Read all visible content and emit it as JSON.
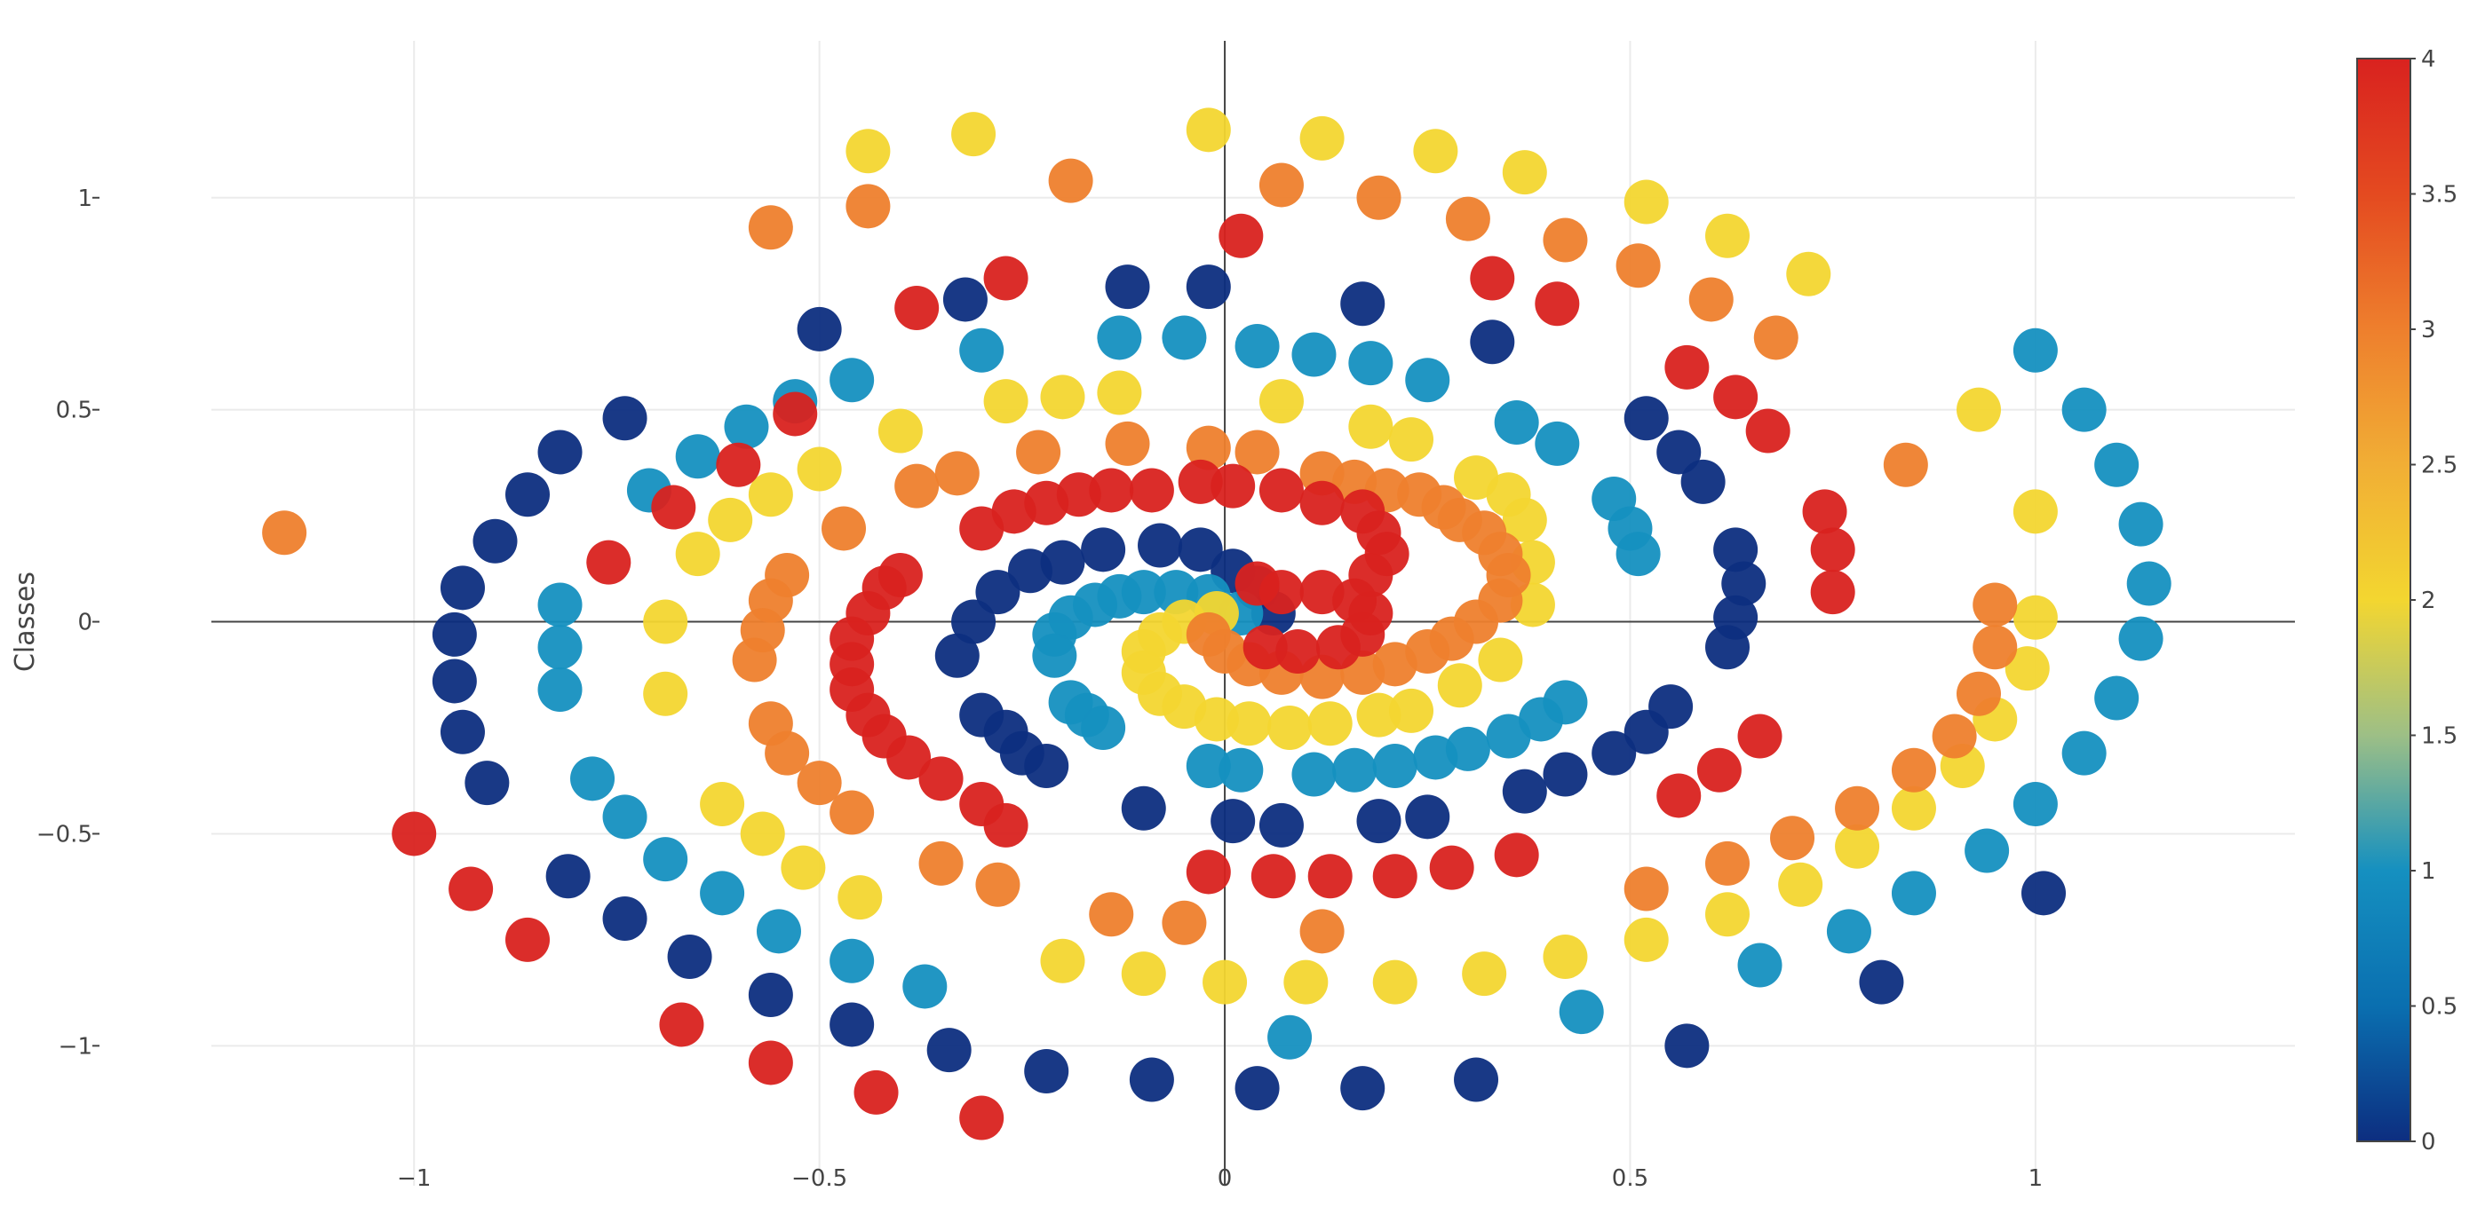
{
  "chart_data": {
    "type": "scatter",
    "title": "",
    "xlabel": "",
    "ylabel": "Classes",
    "xlim": [
      -1.25,
      1.32
    ],
    "ylim": [
      -1.33,
      1.37
    ],
    "x_ticks": [
      -1,
      -0.5,
      0,
      0.5,
      1
    ],
    "x_tick_labels": [
      "−1",
      "−0.5",
      "0",
      "0.5",
      "1"
    ],
    "y_ticks": [
      -1,
      -0.5,
      0,
      0.5,
      1
    ],
    "y_tick_labels": [
      "−1",
      "−0.5",
      "0",
      "0.5",
      "1"
    ],
    "grid": true,
    "zero_lines": true,
    "colorbar": {
      "min": 0,
      "max": 4,
      "ticks": [
        0,
        0.5,
        1,
        1.5,
        2,
        2.5,
        3,
        3.5,
        4
      ],
      "tick_labels": [
        "0",
        "0.5",
        "1",
        "1.5",
        "2",
        "2.5",
        "3",
        "3.5",
        "4"
      ],
      "colorscale": [
        "#0d2e80",
        "#0a6fb0",
        "#1590c0",
        "#9dbf86",
        "#f3d630",
        "#f1ae35",
        "#ee7f2d",
        "#e44a20",
        "#d9221f"
      ]
    },
    "classes": {
      "0": [
        [
          0.06,
          0.02
        ],
        [
          0.04,
          0.08
        ],
        [
          0.01,
          0.12
        ],
        [
          -0.03,
          0.17
        ],
        [
          -0.08,
          0.18
        ],
        [
          -0.15,
          0.17
        ],
        [
          -0.2,
          0.14
        ],
        [
          -0.24,
          0.12
        ],
        [
          -0.28,
          0.07
        ],
        [
          -0.31,
          0.0
        ],
        [
          -0.33,
          -0.08
        ],
        [
          -0.3,
          -0.22
        ],
        [
          -0.27,
          -0.26
        ],
        [
          -0.25,
          -0.31
        ],
        [
          -0.22,
          -0.34
        ],
        [
          -0.1,
          -0.44
        ],
        [
          0.01,
          -0.47
        ],
        [
          0.07,
          -0.48
        ],
        [
          0.19,
          -0.47
        ],
        [
          0.25,
          -0.46
        ],
        [
          0.37,
          -0.4
        ],
        [
          0.42,
          -0.36
        ],
        [
          0.48,
          -0.31
        ],
        [
          0.52,
          -0.26
        ],
        [
          0.55,
          -0.2
        ],
        [
          0.62,
          -0.06
        ],
        [
          0.63,
          0.01
        ],
        [
          0.64,
          0.09
        ],
        [
          0.63,
          0.17
        ],
        [
          0.59,
          0.33
        ],
        [
          0.56,
          0.4
        ],
        [
          0.52,
          0.48
        ],
        [
          0.33,
          0.66
        ],
        [
          0.17,
          0.75
        ],
        [
          -0.02,
          0.79
        ],
        [
          -0.12,
          0.79
        ],
        [
          -0.32,
          0.76
        ],
        [
          -0.5,
          0.69
        ],
        [
          -0.74,
          0.48
        ],
        [
          -0.82,
          0.4
        ],
        [
          -0.86,
          0.3
        ],
        [
          -0.9,
          0.19
        ],
        [
          -0.94,
          0.08
        ],
        [
          -0.95,
          -0.03
        ],
        [
          -0.95,
          -0.14
        ],
        [
          -0.94,
          -0.26
        ],
        [
          -0.91,
          -0.38
        ],
        [
          -0.81,
          -0.6
        ],
        [
          -0.74,
          -0.7
        ],
        [
          -0.66,
          -0.79
        ],
        [
          -0.56,
          -0.88
        ],
        [
          -0.46,
          -0.95
        ],
        [
          -0.34,
          -1.01
        ],
        [
          -0.22,
          -1.06
        ],
        [
          -0.09,
          -1.08
        ],
        [
          0.04,
          -1.1
        ],
        [
          0.17,
          -1.1
        ],
        [
          0.31,
          -1.08
        ],
        [
          0.57,
          -1.0
        ],
        [
          0.81,
          -0.85
        ],
        [
          1.01,
          -0.64
        ]
      ],
      "1": [
        [
          0.02,
          0.02
        ],
        [
          -0.02,
          0.06
        ],
        [
          -0.06,
          0.07
        ],
        [
          -0.1,
          0.07
        ],
        [
          -0.13,
          0.06
        ],
        [
          -0.16,
          0.04
        ],
        [
          -0.19,
          0.01
        ],
        [
          -0.21,
          -0.03
        ],
        [
          -0.21,
          -0.08
        ],
        [
          -0.19,
          -0.19
        ],
        [
          -0.17,
          -0.22
        ],
        [
          -0.15,
          -0.25
        ],
        [
          -0.02,
          -0.34
        ],
        [
          0.02,
          -0.35
        ],
        [
          0.11,
          -0.36
        ],
        [
          0.16,
          -0.35
        ],
        [
          0.21,
          -0.34
        ],
        [
          0.26,
          -0.32
        ],
        [
          0.3,
          -0.3
        ],
        [
          0.35,
          -0.27
        ],
        [
          0.39,
          -0.23
        ],
        [
          0.42,
          -0.19
        ],
        [
          0.51,
          0.16
        ],
        [
          0.5,
          0.22
        ],
        [
          0.48,
          0.29
        ],
        [
          0.41,
          0.42
        ],
        [
          0.36,
          0.47
        ],
        [
          0.25,
          0.57
        ],
        [
          0.18,
          0.61
        ],
        [
          0.11,
          0.63
        ],
        [
          0.04,
          0.65
        ],
        [
          -0.05,
          0.67
        ],
        [
          -0.13,
          0.67
        ],
        [
          -0.3,
          0.64
        ],
        [
          -0.46,
          0.57
        ],
        [
          -0.53,
          0.52
        ],
        [
          -0.59,
          0.46
        ],
        [
          -0.65,
          0.39
        ],
        [
          -0.71,
          0.31
        ],
        [
          -0.82,
          0.04
        ],
        [
          -0.82,
          -0.06
        ],
        [
          -0.82,
          -0.16
        ],
        [
          -0.78,
          -0.37
        ],
        [
          -0.74,
          -0.46
        ],
        [
          -0.69,
          -0.56
        ],
        [
          -0.62,
          -0.64
        ],
        [
          -0.55,
          -0.73
        ],
        [
          -0.46,
          -0.8
        ],
        [
          -0.37,
          -0.86
        ],
        [
          0.08,
          -0.98
        ],
        [
          0.44,
          -0.92
        ],
        [
          0.66,
          -0.81
        ],
        [
          0.77,
          -0.73
        ],
        [
          0.85,
          -0.64
        ],
        [
          0.94,
          -0.54
        ],
        [
          1.0,
          -0.43
        ],
        [
          1.06,
          -0.31
        ],
        [
          1.1,
          -0.18
        ],
        [
          1.13,
          -0.04
        ],
        [
          1.14,
          0.09
        ],
        [
          1.13,
          0.23
        ],
        [
          1.1,
          0.37
        ],
        [
          1.06,
          0.5
        ],
        [
          1.0,
          0.64
        ]
      ],
      "2": [
        [
          -0.01,
          0.02
        ],
        [
          -0.05,
          0.0
        ],
        [
          -0.08,
          -0.03
        ],
        [
          -0.1,
          -0.07
        ],
        [
          -0.1,
          -0.12
        ],
        [
          -0.08,
          -0.17
        ],
        [
          -0.05,
          -0.2
        ],
        [
          -0.01,
          -0.23
        ],
        [
          0.03,
          -0.24
        ],
        [
          0.08,
          -0.25
        ],
        [
          0.13,
          -0.24
        ],
        [
          0.19,
          -0.22
        ],
        [
          0.23,
          -0.21
        ],
        [
          0.29,
          -0.15
        ],
        [
          0.34,
          -0.09
        ],
        [
          0.38,
          0.04
        ],
        [
          0.38,
          0.14
        ],
        [
          0.37,
          0.24
        ],
        [
          0.35,
          0.3
        ],
        [
          0.31,
          0.34
        ],
        [
          0.23,
          0.43
        ],
        [
          0.18,
          0.46
        ],
        [
          0.07,
          0.52
        ],
        [
          -0.13,
          0.54
        ],
        [
          -0.2,
          0.53
        ],
        [
          -0.27,
          0.52
        ],
        [
          -0.4,
          0.45
        ],
        [
          -0.5,
          0.36
        ],
        [
          -0.56,
          0.3
        ],
        [
          -0.61,
          0.24
        ],
        [
          -0.65,
          0.16
        ],
        [
          -0.69,
          0.0
        ],
        [
          -0.69,
          -0.17
        ],
        [
          -0.62,
          -0.43
        ],
        [
          -0.57,
          -0.5
        ],
        [
          -0.52,
          -0.58
        ],
        [
          -0.45,
          -0.65
        ],
        [
          -0.2,
          -0.8
        ],
        [
          -0.1,
          -0.83
        ],
        [
          0.0,
          -0.85
        ],
        [
          0.1,
          -0.85
        ],
        [
          0.21,
          -0.85
        ],
        [
          0.32,
          -0.83
        ],
        [
          0.42,
          -0.79
        ],
        [
          0.52,
          -0.75
        ],
        [
          0.62,
          -0.69
        ],
        [
          0.71,
          -0.62
        ],
        [
          0.78,
          -0.53
        ],
        [
          0.85,
          -0.44
        ],
        [
          0.91,
          -0.34
        ],
        [
          0.95,
          -0.23
        ],
        [
          0.99,
          -0.11
        ],
        [
          1.0,
          0.01
        ],
        [
          1.0,
          0.26
        ],
        [
          0.93,
          0.5
        ],
        [
          0.72,
          0.82
        ],
        [
          0.62,
          0.91
        ],
        [
          0.52,
          0.99
        ],
        [
          0.37,
          1.06
        ],
        [
          0.26,
          1.11
        ],
        [
          0.12,
          1.14
        ],
        [
          -0.02,
          1.16
        ],
        [
          -0.31,
          1.15
        ],
        [
          -0.44,
          1.11
        ]
      ],
      "3": [
        [
          -0.02,
          -0.03
        ],
        [
          0.0,
          -0.07
        ],
        [
          0.03,
          -0.1
        ],
        [
          0.07,
          -0.12
        ],
        [
          0.12,
          -0.13
        ],
        [
          0.17,
          -0.12
        ],
        [
          0.21,
          -0.1
        ],
        [
          0.25,
          -0.07
        ],
        [
          0.28,
          -0.04
        ],
        [
          0.31,
          0.0
        ],
        [
          0.34,
          0.05
        ],
        [
          0.35,
          0.11
        ],
        [
          0.34,
          0.16
        ],
        [
          0.32,
          0.21
        ],
        [
          0.29,
          0.24
        ],
        [
          0.27,
          0.27
        ],
        [
          0.24,
          0.3
        ],
        [
          0.2,
          0.31
        ],
        [
          0.16,
          0.33
        ],
        [
          0.12,
          0.35
        ],
        [
          0.04,
          0.4
        ],
        [
          -0.02,
          0.41
        ],
        [
          -0.12,
          0.42
        ],
        [
          -0.23,
          0.4
        ],
        [
          -0.33,
          0.35
        ],
        [
          -0.38,
          0.32
        ],
        [
          -0.47,
          0.22
        ],
        [
          -0.54,
          0.11
        ],
        [
          -0.56,
          0.05
        ],
        [
          -0.57,
          -0.02
        ],
        [
          -0.58,
          -0.09
        ],
        [
          -0.56,
          -0.24
        ],
        [
          -0.54,
          -0.31
        ],
        [
          -0.5,
          -0.38
        ],
        [
          -0.46,
          -0.45
        ],
        [
          -0.35,
          -0.57
        ],
        [
          -0.28,
          -0.62
        ],
        [
          -0.14,
          -0.69
        ],
        [
          -0.05,
          -0.71
        ],
        [
          0.12,
          -0.73
        ],
        [
          0.52,
          -0.63
        ],
        [
          0.62,
          -0.57
        ],
        [
          0.7,
          -0.51
        ],
        [
          0.78,
          -0.44
        ],
        [
          0.85,
          -0.35
        ],
        [
          0.9,
          -0.27
        ],
        [
          0.93,
          -0.17
        ],
        [
          0.95,
          -0.06
        ],
        [
          0.95,
          0.04
        ],
        [
          0.84,
          0.37
        ],
        [
          0.68,
          0.67
        ],
        [
          0.6,
          0.76
        ],
        [
          0.51,
          0.84
        ],
        [
          0.42,
          0.9
        ],
        [
          0.3,
          0.95
        ],
        [
          0.19,
          1.0
        ],
        [
          0.07,
          1.03
        ],
        [
          -0.19,
          1.04
        ],
        [
          -0.44,
          0.98
        ],
        [
          -0.56,
          0.93
        ],
        [
          -1.16,
          0.21
        ]
      ],
      "4": [
        [
          0.04,
          0.09
        ],
        [
          0.07,
          0.07
        ],
        [
          0.12,
          0.07
        ],
        [
          0.16,
          0.05
        ],
        [
          0.18,
          0.02
        ],
        [
          0.17,
          -0.03
        ],
        [
          0.14,
          -0.06
        ],
        [
          0.09,
          -0.07
        ],
        [
          0.05,
          -0.06
        ],
        [
          0.18,
          0.11
        ],
        [
          0.2,
          0.16
        ],
        [
          0.19,
          0.21
        ],
        [
          0.17,
          0.26
        ],
        [
          0.12,
          0.28
        ],
        [
          0.07,
          0.31
        ],
        [
          0.01,
          0.32
        ],
        [
          -0.03,
          0.33
        ],
        [
          -0.09,
          0.31
        ],
        [
          -0.14,
          0.31
        ],
        [
          -0.18,
          0.3
        ],
        [
          -0.22,
          0.28
        ],
        [
          -0.26,
          0.26
        ],
        [
          -0.3,
          0.22
        ],
        [
          -0.4,
          0.11
        ],
        [
          -0.42,
          0.08
        ],
        [
          -0.44,
          0.02
        ],
        [
          -0.46,
          -0.04
        ],
        [
          -0.46,
          -0.1
        ],
        [
          -0.46,
          -0.16
        ],
        [
          -0.44,
          -0.22
        ],
        [
          -0.42,
          -0.27
        ],
        [
          -0.39,
          -0.32
        ],
        [
          -0.35,
          -0.37
        ],
        [
          -0.3,
          -0.43
        ],
        [
          -0.27,
          -0.48
        ],
        [
          -0.02,
          -0.59
        ],
        [
          0.06,
          -0.6
        ],
        [
          0.13,
          -0.6
        ],
        [
          0.21,
          -0.6
        ],
        [
          0.28,
          -0.58
        ],
        [
          0.36,
          -0.55
        ],
        [
          0.56,
          -0.41
        ],
        [
          0.61,
          -0.35
        ],
        [
          0.66,
          -0.27
        ],
        [
          0.75,
          0.07
        ],
        [
          0.75,
          0.17
        ],
        [
          0.74,
          0.26
        ],
        [
          0.67,
          0.45
        ],
        [
          0.63,
          0.53
        ],
        [
          0.57,
          0.6
        ],
        [
          0.41,
          0.75
        ],
        [
          0.33,
          0.81
        ],
        [
          0.02,
          0.91
        ],
        [
          -0.27,
          0.81
        ],
        [
          -0.38,
          0.74
        ],
        [
          -0.53,
          0.49
        ],
        [
          -0.6,
          0.37
        ],
        [
          -0.68,
          0.27
        ],
        [
          -0.76,
          0.14
        ],
        [
          -1.0,
          -0.5
        ],
        [
          -0.93,
          -0.63
        ],
        [
          -0.86,
          -0.75
        ],
        [
          -0.67,
          -0.95
        ],
        [
          -0.56,
          -1.04
        ],
        [
          -0.43,
          -1.11
        ],
        [
          -0.3,
          -1.17
        ]
      ]
    }
  }
}
